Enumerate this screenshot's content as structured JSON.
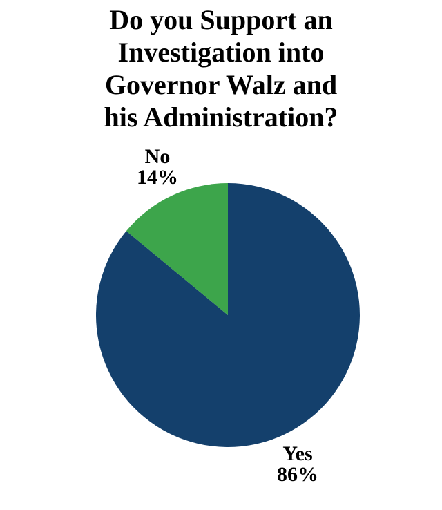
{
  "chart_data": {
    "type": "pie",
    "title": "Do you Support an Investigation into Governor Walz and his Administration?",
    "title_lines": [
      "Do you Support an",
      "Investigation into",
      "Governor Walz and",
      "his Administration?"
    ],
    "slices": [
      {
        "label": "Yes",
        "value": 86,
        "display": "86%",
        "color": "#14406C"
      },
      {
        "label": "No",
        "value": 14,
        "display": "14%",
        "color": "#3DA54B"
      }
    ],
    "start_angle_deg": 0,
    "rotation": "clockwise",
    "legend_position": "none",
    "data_labels": "category name and percentage, outside end",
    "background_color": "#FFFFFF",
    "text_color": "#000000"
  }
}
